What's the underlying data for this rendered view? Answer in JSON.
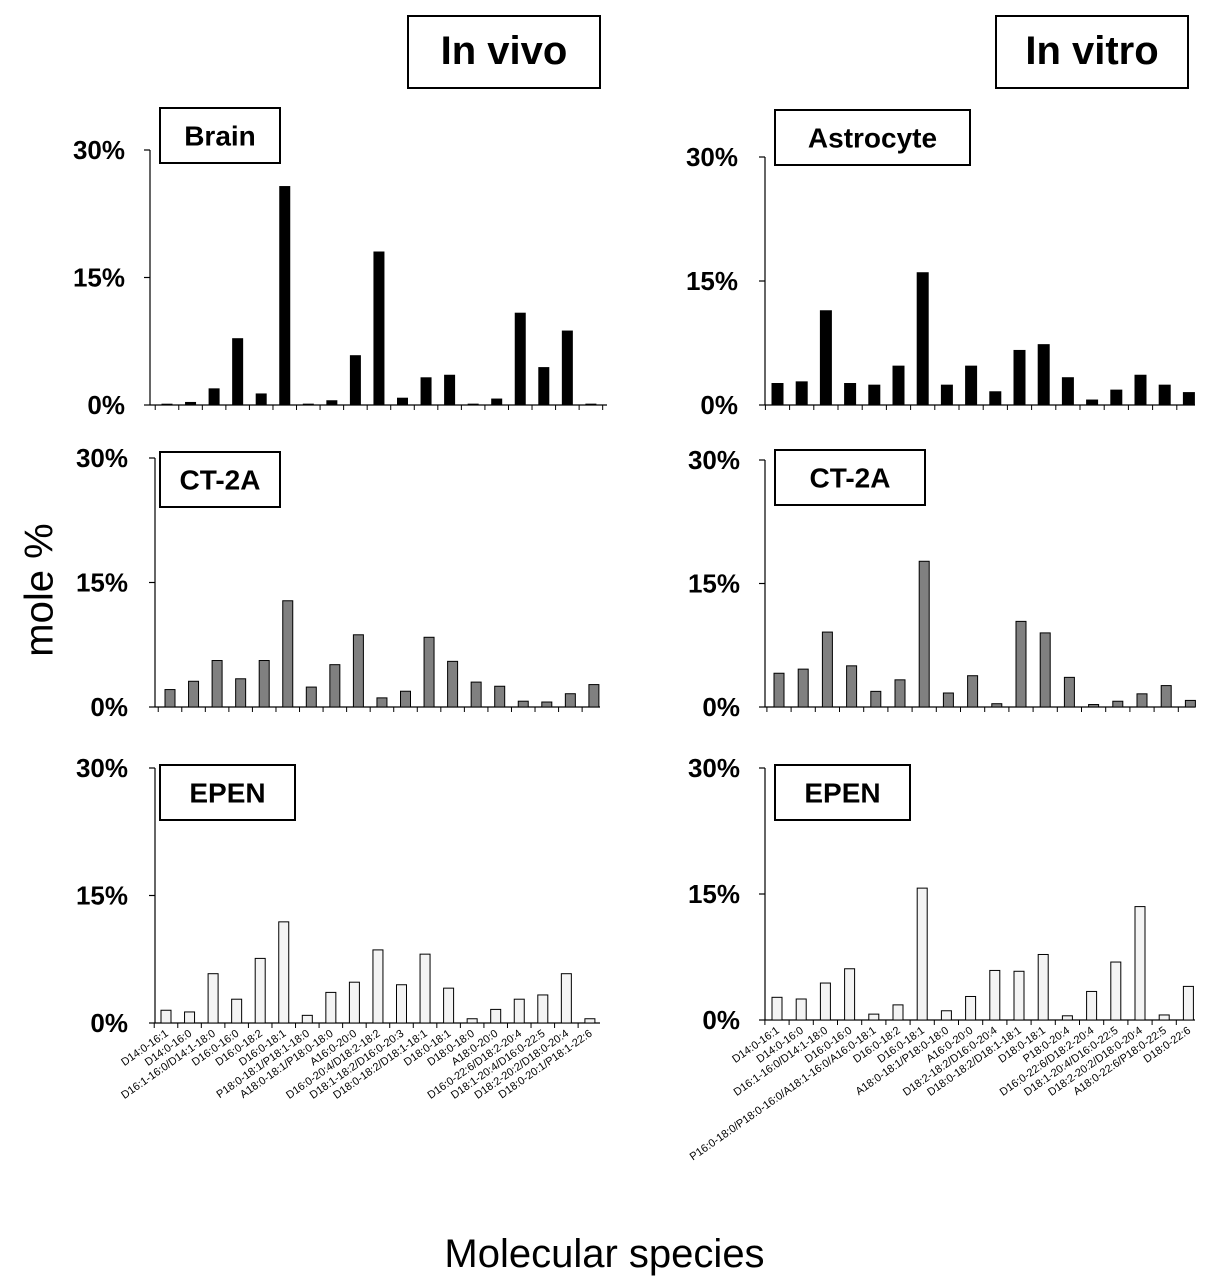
{
  "headers": {
    "in_vivo": "In vivo",
    "in_vitro": "In vitro"
  },
  "ylabel": "mole %",
  "xlabel": "Molecular species",
  "colors": {
    "black": "#000000",
    "gray": "#808080",
    "white": "#f4f4f4"
  },
  "chart_data": [
    {
      "type": "bar",
      "title": "Brain",
      "column": "In vivo",
      "fill": "black",
      "yticks": [
        "0%",
        "15%",
        "30%"
      ],
      "ylim": [
        0,
        30
      ],
      "categories": [
        "D14:0-16:1",
        "D14:0-16:0",
        "D16:1-16:0/D14:1-18:0",
        "D16:0-16:0",
        "D16:0-18:2",
        "D16:0-18:1",
        "P18:0-18:1/P18:1-18:0",
        "A18:0-18:1/P18:0-18:0",
        "A16:0-20:0",
        "D16:0-20:4/D18:2-18:2",
        "D18:1-18:2/D16:0-20:3",
        "D18:0-18:2/D18:1-18:1",
        "D18:0-18:1",
        "D18:0-18:0",
        "A18:0-20:0",
        "D16:0-22:6/D18:2-20:4",
        "D18:1-20:4/D16:0-22:5",
        "D18:2-20:2/D18:0-20:4",
        "D18:0-20:1/P18:1-22:6"
      ],
      "values": [
        0,
        0.3,
        1.9,
        7.8,
        1.3,
        25.7,
        0.1,
        0.5,
        5.8,
        18,
        0.8,
        3.2,
        3.5,
        0.1,
        0.7,
        10.8,
        4.4,
        8.7,
        0.1
      ]
    },
    {
      "type": "bar",
      "title": "CT-2A",
      "column": "In vivo",
      "fill": "gray",
      "yticks": [
        "0%",
        "15%",
        "30%"
      ],
      "ylim": [
        0,
        30
      ],
      "categories": [
        "D14:0-16:1",
        "D14:0-16:0",
        "D16:1-16:0/D14:1-18:0",
        "D16:0-16:0",
        "D16:0-18:2",
        "D16:0-18:1",
        "P18:0-18:1/P18:1-18:0",
        "A18:0-18:1/P18:0-18:0",
        "A16:0-20:0",
        "D16:0-20:4/D18:2-18:2",
        "D18:1-18:2/D16:0-20:3",
        "D18:0-18:2/D18:1-18:1",
        "D18:0-18:1",
        "D18:0-18:0",
        "A18:0-20:0",
        "D16:0-22:6/D18:2-20:4",
        "D18:1-20:4/D16:0-22:5",
        "D18:2-20:2/D18:0-20:4",
        "D18:0-20:1/P18:1-22:6"
      ],
      "values": [
        2.1,
        3.1,
        5.6,
        3.4,
        5.6,
        12.8,
        2.4,
        5.1,
        8.7,
        1.1,
        1.9,
        8.4,
        5.5,
        3.0,
        2.5,
        0.7,
        0.6,
        1.6,
        2.7
      ]
    },
    {
      "type": "bar",
      "title": "EPEN",
      "column": "In vivo",
      "fill": "white",
      "yticks": [
        "0%",
        "15%",
        "30%"
      ],
      "ylim": [
        0,
        30
      ],
      "categories": [
        "D14:0-16:1",
        "D14:0-16:0",
        "D16:1-16:0/D14:1-18:0",
        "D16:0-16:0",
        "D16:0-18:2",
        "D16:0-18:1",
        "P18:0-18:1/P18:1-18:0",
        "A18:0-18:1/P18:0-18:0",
        "A16:0-20:0",
        "D16:0-20:4/D18:2-18:2",
        "D18:1-18:2/D16:0-20:3",
        "D18:0-18:2/D18:1-18:1",
        "D18:0-18:1",
        "D18:0-18:0",
        "A18:0-20:0",
        "D16:0-22:6/D18:2-20:4",
        "D18:1-20:4/D16:0-22:5",
        "D18:2-20:2/D18:0-20:4",
        "D18:0-20:1/P18:1-22:6"
      ],
      "values": [
        1.5,
        1.3,
        5.8,
        2.8,
        7.6,
        11.9,
        0.9,
        3.6,
        4.8,
        8.6,
        4.5,
        8.1,
        4.1,
        0.5,
        1.6,
        2.8,
        3.3,
        5.8,
        0.5
      ]
    },
    {
      "type": "bar",
      "title": "Astrocyte",
      "column": "In vitro",
      "fill": "black",
      "yticks": [
        "0%",
        "15%",
        "30%"
      ],
      "ylim": [
        0,
        30
      ],
      "categories": [
        "D14:0-16:1",
        "D14:0-16:0",
        "D16:1-16:0/D14:1-18:0",
        "D16:0-16:0",
        "P16:0-18:0/P18:0-16:0/A18:1-16:0/A16:0-18:1",
        "D16:0-18:2",
        "D16:0-18:1",
        "A18:0-18:1/P18:0-18:0",
        "A16:0-20:0",
        "D18:2-18:2/D16:0-20:4",
        "D18:0-18:2/D18:1-18:1",
        "D18:0-18:1",
        "P18:0-20:4",
        "D16:0-22:6/D18:2-20:4",
        "D18:1-20:4/D16:0-22:5",
        "D18:2-20:2/D18:0-20:4",
        "A18:0-22:6/P18:0-22:5",
        "D18:0-22:6"
      ],
      "values": [
        2.6,
        2.8,
        11.4,
        2.6,
        2.4,
        4.7,
        16.0,
        2.4,
        4.7,
        1.6,
        6.6,
        7.3,
        3.3,
        0.6,
        1.8,
        3.6,
        2.4,
        1.5
      ]
    },
    {
      "type": "bar",
      "title": "CT-2A",
      "column": "In vitro",
      "fill": "gray",
      "yticks": [
        "0%",
        "15%",
        "30%"
      ],
      "ylim": [
        0,
        30
      ],
      "categories": [
        "D14:0-16:1",
        "D14:0-16:0",
        "D16:1-16:0/D14:1-18:0",
        "D16:0-16:0",
        "P16:0-18:0/P18:0-16:0/A18:1-16:0/A16:0-18:1",
        "D16:0-18:2",
        "D16:0-18:1",
        "A18:0-18:1/P18:0-18:0",
        "A16:0-20:0",
        "D18:2-18:2/D16:0-20:4",
        "D18:0-18:2/D18:1-18:1",
        "D18:0-18:1",
        "P18:0-20:4",
        "D16:0-22:6/D18:2-20:4",
        "D18:1-20:4/D16:0-22:5",
        "D18:2-20:2/D18:0-20:4",
        "A18:0-22:6/P18:0-22:5",
        "D18:0-22:6"
      ],
      "values": [
        4.1,
        4.6,
        9.1,
        5.0,
        1.9,
        3.3,
        17.7,
        1.7,
        3.8,
        0.4,
        10.4,
        9.0,
        3.6,
        0.3,
        0.7,
        1.6,
        2.6,
        0.8
      ]
    },
    {
      "type": "bar",
      "title": "EPEN",
      "column": "In vitro",
      "fill": "white",
      "yticks": [
        "0%",
        "15%",
        "30%"
      ],
      "ylim": [
        0,
        30
      ],
      "categories": [
        "D14:0-16:1",
        "D14:0-16:0",
        "D16:1-16:0/D14:1-18:0",
        "D16:0-16:0",
        "P16:0-18:0/P18:0-16:0/A18:1-16:0/A16:0-18:1",
        "D16:0-18:2",
        "D16:0-18:1",
        "A18:0-18:1/P18:0-18:0",
        "A16:0-20:0",
        "D18:2-18:2/D16:0-20:4",
        "D18:0-18:2/D18:1-18:1",
        "D18:0-18:1",
        "P18:0-20:4",
        "D16:0-22:6/D18:2-20:4",
        "D18:1-20:4/D16:0-22:5",
        "D18:2-20:2/D18:0-20:4",
        "A18:0-22:6/P18:0-22:5",
        "D18:0-22:6"
      ],
      "values": [
        2.7,
        2.5,
        4.4,
        6.1,
        0.7,
        1.8,
        15.7,
        1.1,
        2.8,
        5.9,
        5.8,
        7.8,
        0.5,
        3.4,
        6.9,
        13.5,
        0.6,
        4.0
      ]
    }
  ]
}
